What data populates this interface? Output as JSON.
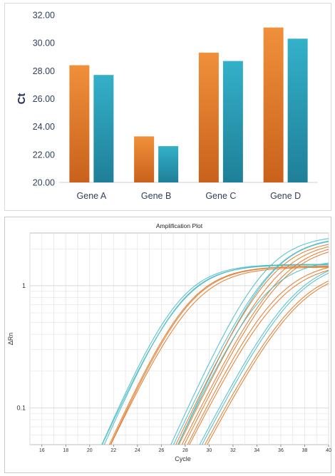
{
  "chart_data": [
    {
      "type": "bar",
      "title": "",
      "xlabel": "",
      "ylabel": "Ct",
      "ylim": [
        20,
        32
      ],
      "yticks": [
        "20.00",
        "22.00",
        "24.00",
        "26.00",
        "28.00",
        "30.00",
        "32.00"
      ],
      "categories": [
        "Gene A",
        "Gene B",
        "Gene C",
        "Gene D"
      ],
      "series": [
        {
          "values": [
            28.4,
            23.3,
            29.3,
            31.1
          ],
          "color": "#e8822e"
        },
        {
          "values": [
            27.7,
            22.6,
            28.7,
            30.3
          ],
          "color": "#2fa4bf"
        }
      ],
      "grid": false,
      "legend": "none"
    },
    {
      "type": "line",
      "title": "Amplification Plot",
      "xlabel": "Cycle",
      "ylabel": "ΔRn",
      "xlim": [
        15,
        40
      ],
      "ylim": [
        0.05,
        2.7
      ],
      "yscale": "log",
      "xticks": [
        16,
        18,
        20,
        22,
        24,
        26,
        28,
        30,
        32,
        34,
        36,
        38,
        40
      ],
      "yticks": [
        "0.1",
        "1"
      ],
      "grid": true,
      "legend": "none",
      "colors": {
        "teal": "#4bbdc9",
        "orange": "#e07a2a"
      },
      "series": [
        {
          "color": "teal",
          "ct": 22.8,
          "plateau": 1.5,
          "slope": 0.52
        },
        {
          "color": "teal",
          "ct": 22.9,
          "plateau": 1.5,
          "slope": 0.5
        },
        {
          "color": "teal",
          "ct": 23.0,
          "plateau": 1.48,
          "slope": 0.52
        },
        {
          "color": "orange",
          "ct": 23.5,
          "plateau": 1.45,
          "slope": 0.5
        },
        {
          "color": "orange",
          "ct": 23.6,
          "plateau": 1.44,
          "slope": 0.5
        },
        {
          "color": "orange",
          "ct": 23.7,
          "plateau": 1.42,
          "slope": 0.48
        },
        {
          "color": "teal",
          "ct": 28.6,
          "plateau": 2.6,
          "slope": 0.5
        },
        {
          "color": "teal",
          "ct": 28.9,
          "plateau": 2.55,
          "slope": 0.48
        },
        {
          "color": "teal",
          "ct": 29.2,
          "plateau": 2.5,
          "slope": 0.5
        },
        {
          "color": "orange",
          "ct": 29.1,
          "plateau": 2.4,
          "slope": 0.48
        },
        {
          "color": "orange",
          "ct": 29.4,
          "plateau": 2.35,
          "slope": 0.47
        },
        {
          "color": "orange",
          "ct": 29.7,
          "plateau": 2.3,
          "slope": 0.46
        },
        {
          "color": "orange",
          "ct": 29.9,
          "plateau": 2.2,
          "slope": 0.46
        },
        {
          "color": "teal",
          "ct": 29.3,
          "plateau": 1.65,
          "slope": 0.48
        },
        {
          "color": "orange",
          "ct": 30.2,
          "plateau": 1.6,
          "slope": 0.46
        },
        {
          "color": "orange",
          "ct": 30.4,
          "plateau": 1.55,
          "slope": 0.45
        },
        {
          "color": "teal",
          "ct": 31.3,
          "plateau": 1.7,
          "slope": 0.44
        },
        {
          "color": "teal",
          "ct": 31.5,
          "plateau": 1.65,
          "slope": 0.44
        },
        {
          "color": "orange",
          "ct": 31.8,
          "plateau": 1.45,
          "slope": 0.43
        },
        {
          "color": "orange",
          "ct": 32.0,
          "plateau": 1.4,
          "slope": 0.43
        }
      ]
    }
  ]
}
